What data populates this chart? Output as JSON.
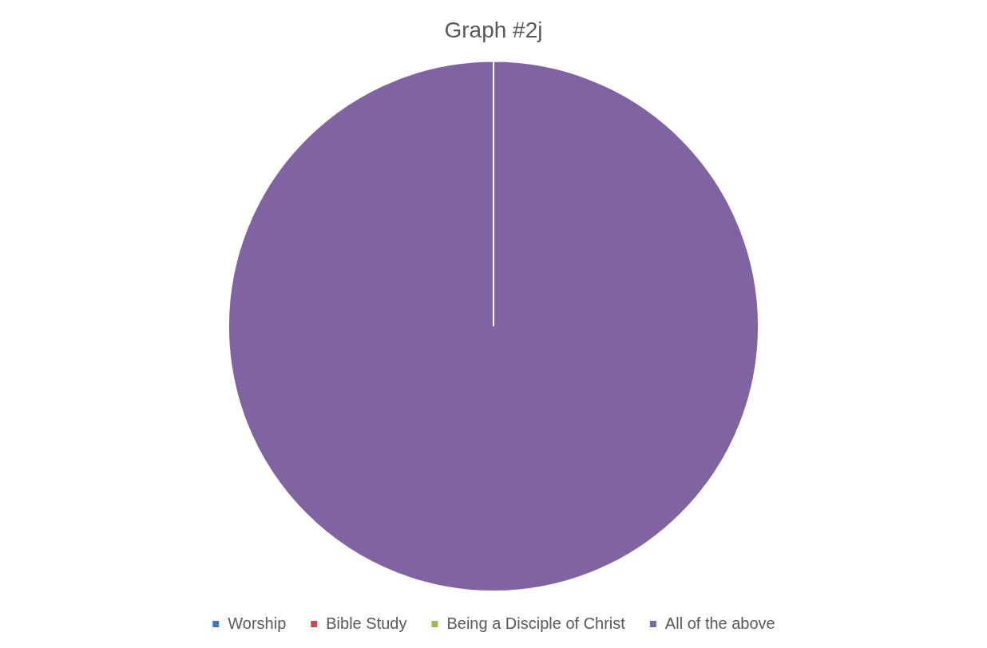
{
  "chart_data": {
    "type": "pie",
    "title": "Graph #2j",
    "categories": [
      "Worship",
      "Bible Study",
      "Being a Disciple of Christ",
      "All of the above"
    ],
    "values": [
      0,
      0,
      0,
      100
    ],
    "colors": [
      "#4472c4",
      "#c0504d",
      "#9bbb59",
      "#8064a2"
    ],
    "legend": "bottom"
  }
}
